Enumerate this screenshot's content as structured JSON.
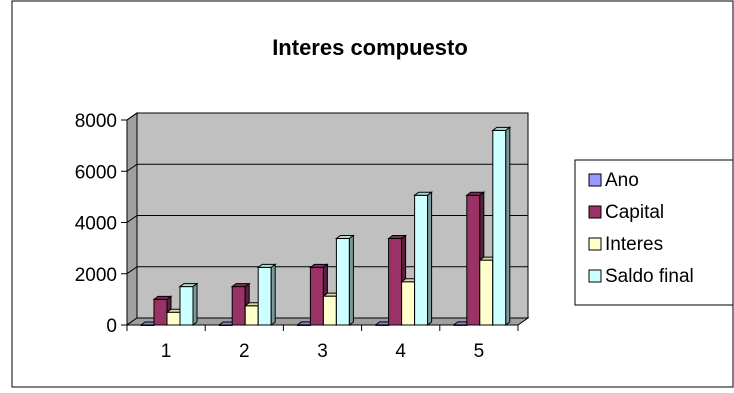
{
  "chart_data": {
    "type": "bar",
    "title": "Interes compuesto",
    "xlabel": "",
    "ylabel": "",
    "categories": [
      "1",
      "2",
      "3",
      "4",
      "5"
    ],
    "ylim": [
      0,
      8000
    ],
    "yticks": [
      "0",
      "2000",
      "4000",
      "6000",
      "8000"
    ],
    "legend_position": "right",
    "grid": true,
    "series": [
      {
        "name": "Ano",
        "color": "#9999ff",
        "values": [
          1,
          2,
          3,
          4,
          5
        ]
      },
      {
        "name": "Capital",
        "color": "#993366",
        "values": [
          1000,
          1500,
          2250,
          3375,
          5062.5
        ]
      },
      {
        "name": "Interes",
        "color": "#ffffcc",
        "values": [
          500,
          750,
          1125,
          1687.5,
          2531.25
        ]
      },
      {
        "name": "Saldo final",
        "color": "#ccffff",
        "values": [
          1500,
          2250,
          3375,
          5062.5,
          7593.75
        ]
      }
    ]
  }
}
